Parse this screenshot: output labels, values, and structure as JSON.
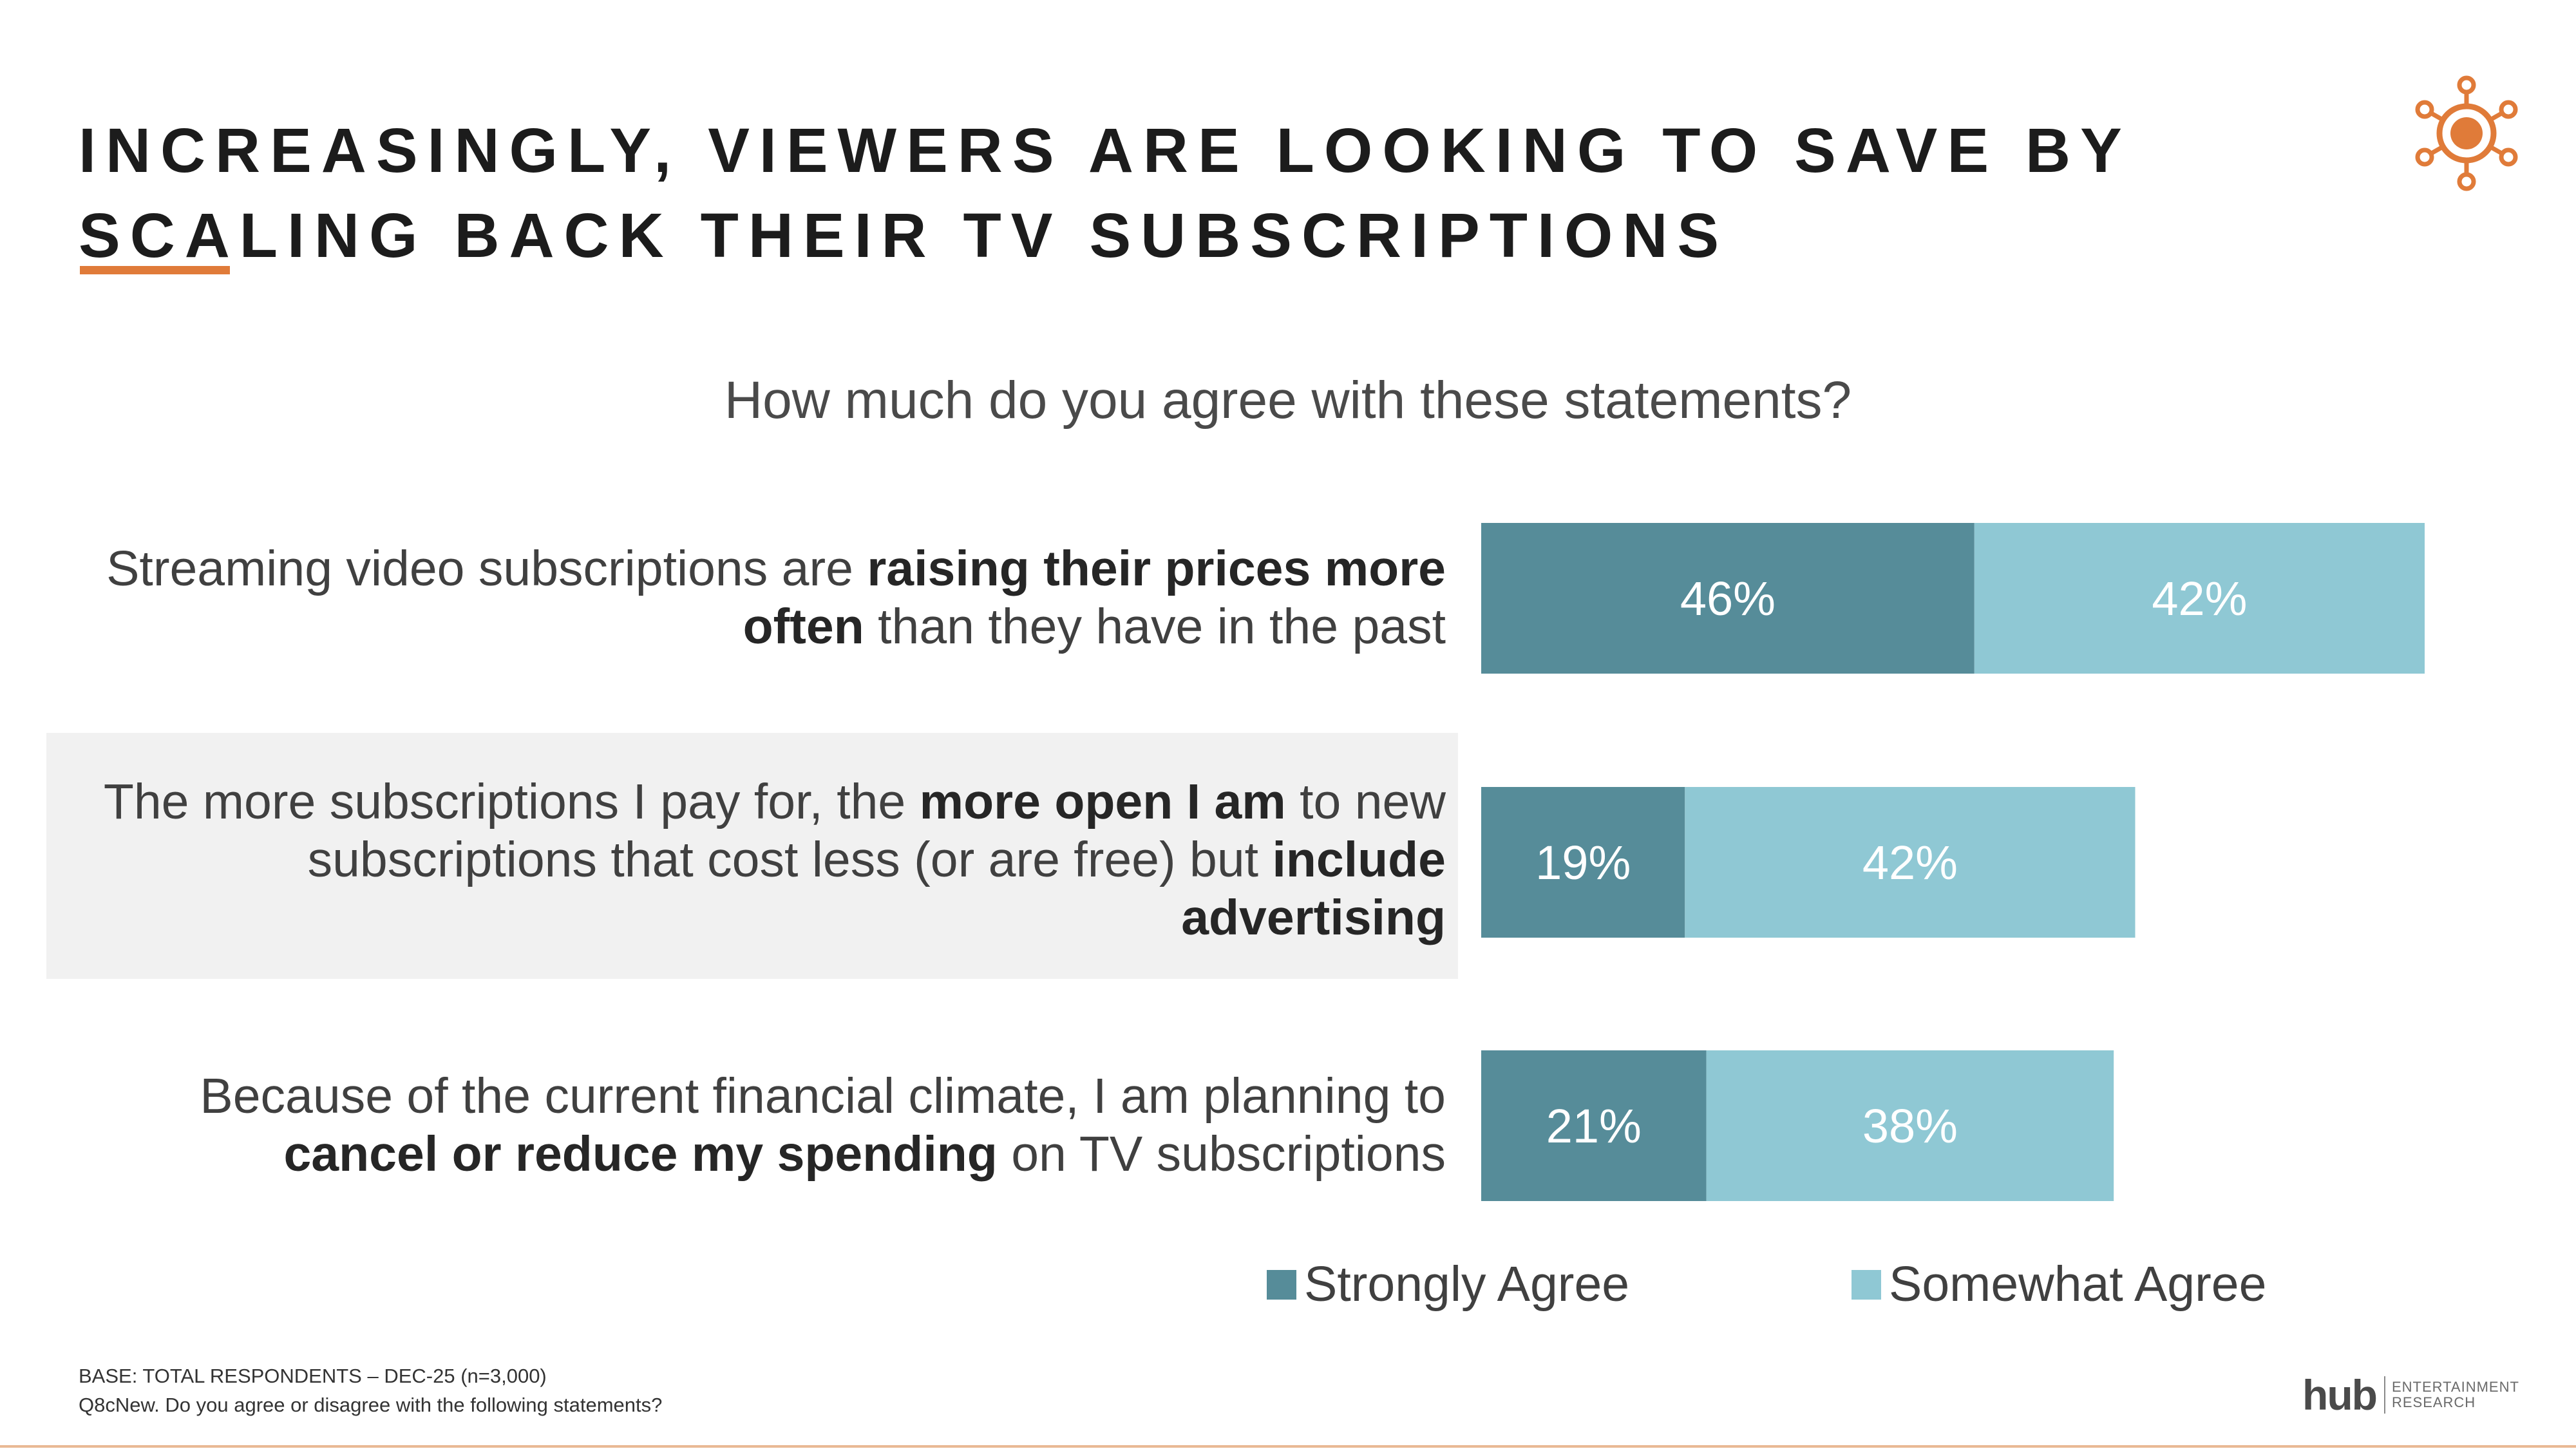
{
  "title": "INCREASINGLY, VIEWERS ARE LOOKING TO SAVE BY SCALING BACK THEIR TV SUBSCRIPTIONS",
  "question": "How much do you agree with these statements?",
  "statements": [
    {
      "parts": [
        {
          "text": "Streaming video subscriptions are ",
          "bold": false
        },
        {
          "text": "raising their prices more often",
          "bold": true
        },
        {
          "text": " than they have in the past",
          "bold": false
        }
      ]
    },
    {
      "parts": [
        {
          "text": "The more subscriptions I pay for, the ",
          "bold": false
        },
        {
          "text": "more open I am",
          "bold": true
        },
        {
          "text": " to new subscriptions that cost less (or are free) but ",
          "bold": false
        },
        {
          "text": "include advertising",
          "bold": true
        }
      ]
    },
    {
      "parts": [
        {
          "text": "Because of the current financial climate, I am planning to ",
          "bold": false
        },
        {
          "text": "cancel or reduce my spending",
          "bold": true
        },
        {
          "text": " on TV subscriptions",
          "bold": false
        }
      ]
    }
  ],
  "chart_data": {
    "type": "bar",
    "orientation": "horizontal",
    "stacked": true,
    "title": "How much do you agree with these statements?",
    "categories": [
      "Streaming video subscriptions are raising their prices more often than they have in the past",
      "The more subscriptions I pay for, the more open I am to new subscriptions that cost less (or are free) but include advertising",
      "Because of the current financial climate, I am planning to cancel or reduce my spending on TV subscriptions"
    ],
    "series": [
      {
        "name": "Strongly Agree",
        "values": [
          46,
          19,
          21
        ],
        "labels": [
          "46%",
          "19%",
          "21%"
        ],
        "color": "#568c99"
      },
      {
        "name": "Somewhat Agree",
        "values": [
          42,
          42,
          38
        ],
        "labels": [
          "42%",
          "42%",
          "38%"
        ],
        "color": "#8fc8d4"
      }
    ],
    "unit": "%",
    "legend_position": "bottom",
    "grid": false,
    "highlighted_category": 1
  },
  "legend": {
    "strongly": "Strongly Agree",
    "somewhat": "Somewhat Agree"
  },
  "footnotes": {
    "base": "BASE: TOTAL RESPONDENTS – DEC-25 (n=3,000)",
    "question": "Q8cNew. Do you agree or disagree with the following statements?"
  },
  "brand": {
    "name": "hub",
    "line1": "ENTERTAINMENT",
    "line2": "RESEARCH"
  },
  "colors": {
    "accent": "#e07b39",
    "strongly": "#568c99",
    "somewhat": "#8fc8d4",
    "highlight_row": "#f1f1f1"
  }
}
